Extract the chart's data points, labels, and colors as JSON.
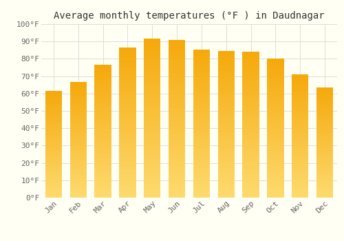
{
  "title": "Average monthly temperatures (°F ) in Daudnagar",
  "months": [
    "Jan",
    "Feb",
    "Mar",
    "Apr",
    "May",
    "Jun",
    "Jul",
    "Aug",
    "Sep",
    "Oct",
    "Nov",
    "Dec"
  ],
  "values": [
    61.5,
    66.5,
    76.5,
    86.5,
    91.5,
    91.0,
    85.5,
    84.5,
    84.0,
    80.0,
    71.0,
    63.5
  ],
  "bar_color_top": "#F5A800",
  "bar_color_bottom": "#FDDA6E",
  "ylim": [
    0,
    100
  ],
  "ytick_step": 10,
  "background_color": "#FFFFF4",
  "grid_color": "#DDDDDD",
  "title_fontsize": 10,
  "tick_fontsize": 8,
  "font_family": "monospace"
}
